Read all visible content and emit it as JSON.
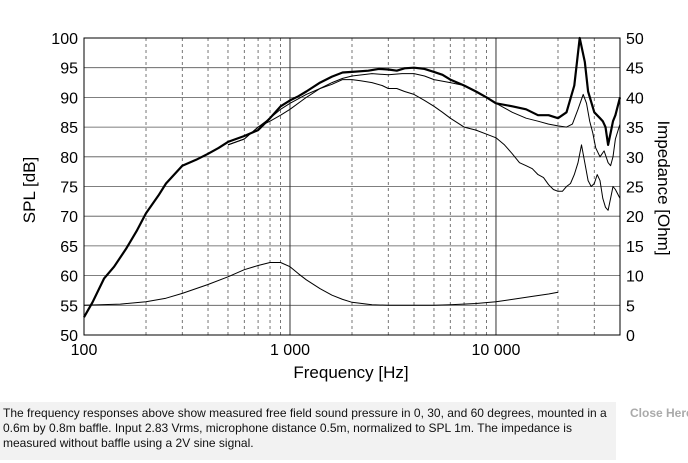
{
  "chart_data": {
    "type": "line",
    "xscale": "log",
    "xlim": [
      100,
      40000
    ],
    "ylim": [
      50,
      100
    ],
    "y2lim": [
      0,
      50
    ],
    "xlabel": "Frequency [Hz]",
    "ylabel": "SPL [dB]",
    "y2label": "Impedance [Ohm]",
    "grid": true,
    "x_tick_labels": [
      {
        "value": 100,
        "label": "100"
      },
      {
        "value": 1000,
        "label": "1 000"
      },
      {
        "value": 10000,
        "label": "10 000"
      }
    ],
    "y_ticks": [
      50,
      55,
      60,
      65,
      70,
      75,
      80,
      85,
      90,
      95,
      100
    ],
    "y2_ticks": [
      0,
      5,
      10,
      15,
      20,
      25,
      30,
      35,
      40,
      45,
      50
    ],
    "series": [
      {
        "axis": "left",
        "width": 2.2,
        "points": [
          [
            100,
            53
          ],
          [
            110,
            55.5
          ],
          [
            125,
            59.5
          ],
          [
            140,
            61.5
          ],
          [
            160,
            64.5
          ],
          [
            180,
            67.5
          ],
          [
            200,
            70.5
          ],
          [
            230,
            73.5
          ],
          [
            250,
            75.5
          ],
          [
            300,
            78.5
          ],
          [
            350,
            79.5
          ],
          [
            400,
            80.5
          ],
          [
            450,
            81.5
          ],
          [
            500,
            82.5
          ],
          [
            600,
            83.5
          ],
          [
            700,
            84.5
          ],
          [
            800,
            86.5
          ],
          [
            900,
            88.5
          ],
          [
            1000,
            89.5
          ],
          [
            1100,
            90.2
          ],
          [
            1200,
            91
          ],
          [
            1400,
            92.5
          ],
          [
            1600,
            93.5
          ],
          [
            1800,
            94.2
          ],
          [
            2000,
            94.3
          ],
          [
            2400,
            94.5
          ],
          [
            2700,
            94.8
          ],
          [
            3000,
            94.7
          ],
          [
            3300,
            94.5
          ],
          [
            3600,
            94.9
          ],
          [
            4000,
            95
          ],
          [
            4500,
            94.8
          ],
          [
            5000,
            94.3
          ],
          [
            5500,
            93.8
          ],
          [
            6000,
            93
          ],
          [
            7000,
            92
          ],
          [
            8000,
            91
          ],
          [
            9000,
            90
          ],
          [
            10000,
            89
          ],
          [
            12000,
            88.5
          ],
          [
            14000,
            88
          ],
          [
            16000,
            87
          ],
          [
            18000,
            87
          ],
          [
            20000,
            86.5
          ],
          [
            22000,
            87.5
          ],
          [
            24000,
            92
          ],
          [
            25500,
            100
          ],
          [
            27000,
            96
          ],
          [
            28000,
            91
          ],
          [
            30000,
            87.5
          ],
          [
            32000,
            86.5
          ],
          [
            33000,
            86
          ],
          [
            34000,
            85
          ],
          [
            35000,
            82
          ],
          [
            36000,
            84
          ],
          [
            37000,
            86
          ],
          [
            38000,
            87
          ],
          [
            40000,
            90
          ]
        ]
      },
      {
        "axis": "left",
        "width": 1,
        "points": [
          [
            500,
            82
          ],
          [
            600,
            83
          ],
          [
            700,
            85
          ],
          [
            800,
            86.5
          ],
          [
            900,
            88
          ],
          [
            1000,
            89
          ],
          [
            1200,
            90.5
          ],
          [
            1400,
            91.5
          ],
          [
            1600,
            92.5
          ],
          [
            1800,
            93.2
          ],
          [
            2000,
            93.6
          ],
          [
            2500,
            94
          ],
          [
            3000,
            93.8
          ],
          [
            3500,
            94
          ],
          [
            4000,
            94
          ],
          [
            4500,
            93.6
          ],
          [
            5000,
            93
          ],
          [
            6000,
            92.5
          ],
          [
            7000,
            92
          ],
          [
            8000,
            91
          ],
          [
            9000,
            90
          ],
          [
            10000,
            89
          ],
          [
            12000,
            87.5
          ],
          [
            14000,
            86.5
          ],
          [
            16000,
            86
          ],
          [
            18000,
            85.5
          ],
          [
            20000,
            85.2
          ],
          [
            22000,
            85
          ],
          [
            23500,
            85.5
          ],
          [
            25000,
            88
          ],
          [
            26500,
            90.5
          ],
          [
            27500,
            89
          ],
          [
            28500,
            86
          ],
          [
            29500,
            84
          ],
          [
            30500,
            81.5
          ],
          [
            32000,
            80
          ],
          [
            33500,
            81
          ],
          [
            35000,
            79
          ],
          [
            36000,
            78.5
          ],
          [
            37000,
            80
          ],
          [
            38000,
            83
          ],
          [
            40000,
            85.5
          ]
        ]
      },
      {
        "axis": "left",
        "width": 1,
        "points": [
          [
            500,
            82
          ],
          [
            600,
            83
          ],
          [
            700,
            85
          ],
          [
            800,
            86
          ],
          [
            900,
            87
          ],
          [
            1000,
            88
          ],
          [
            1200,
            90
          ],
          [
            1400,
            91.5
          ],
          [
            1600,
            92.2
          ],
          [
            1800,
            93
          ],
          [
            2000,
            93
          ],
          [
            2200,
            92.8
          ],
          [
            2500,
            92.5
          ],
          [
            2800,
            92
          ],
          [
            3000,
            91.5
          ],
          [
            3300,
            91.5
          ],
          [
            3600,
            91
          ],
          [
            4000,
            90.5
          ],
          [
            4500,
            89.5
          ],
          [
            5000,
            88.5
          ],
          [
            5500,
            87.5
          ],
          [
            6000,
            86.5
          ],
          [
            7000,
            85
          ],
          [
            8000,
            84.5
          ],
          [
            9000,
            83.8
          ],
          [
            10000,
            83.2
          ],
          [
            11000,
            82
          ],
          [
            12000,
            80.5
          ],
          [
            13000,
            79
          ],
          [
            14000,
            78.5
          ],
          [
            15000,
            78
          ],
          [
            16000,
            77
          ],
          [
            17000,
            76.5
          ],
          [
            18000,
            75.3
          ],
          [
            19000,
            74.5
          ],
          [
            20000,
            74.2
          ],
          [
            21000,
            74.2
          ],
          [
            22000,
            75
          ],
          [
            23000,
            75.5
          ],
          [
            24000,
            77
          ],
          [
            25000,
            79
          ],
          [
            26000,
            82
          ],
          [
            27000,
            79
          ],
          [
            28000,
            76
          ],
          [
            29000,
            75
          ],
          [
            30000,
            75.5
          ],
          [
            31000,
            77
          ],
          [
            32000,
            76
          ],
          [
            33000,
            73
          ],
          [
            34000,
            71.5
          ],
          [
            35000,
            71
          ],
          [
            36000,
            73
          ],
          [
            37000,
            75
          ],
          [
            38000,
            74.5
          ],
          [
            40000,
            73
          ]
        ]
      },
      {
        "axis": "right",
        "width": 1,
        "points": [
          [
            100,
            5
          ],
          [
            150,
            5.2
          ],
          [
            200,
            5.6
          ],
          [
            250,
            6.2
          ],
          [
            300,
            7
          ],
          [
            400,
            8.5
          ],
          [
            500,
            9.8
          ],
          [
            600,
            11
          ],
          [
            700,
            11.7
          ],
          [
            800,
            12.2
          ],
          [
            900,
            12.2
          ],
          [
            1000,
            11.5
          ],
          [
            1100,
            10.3
          ],
          [
            1200,
            9.3
          ],
          [
            1400,
            7.8
          ],
          [
            1600,
            6.7
          ],
          [
            1800,
            6
          ],
          [
            2000,
            5.5
          ],
          [
            2500,
            5.1
          ],
          [
            3000,
            5
          ],
          [
            4000,
            5
          ],
          [
            5000,
            5
          ],
          [
            6000,
            5.1
          ],
          [
            8000,
            5.3
          ],
          [
            10000,
            5.6
          ],
          [
            12000,
            6
          ],
          [
            15000,
            6.5
          ],
          [
            18000,
            6.9
          ],
          [
            20000,
            7.2
          ]
        ]
      }
    ]
  },
  "caption": {
    "text": "The frequency responses above show measured free field sound pressure in 0, 30, and 60 degrees, mounted in a 0.6m by 0.8m baffle. Input 2.83 Vrms, microphone distance 0.5m, normalized to SPL 1m. The impedance is measured without baffle using a 2V sine signal."
  },
  "close_label": "Close Here"
}
